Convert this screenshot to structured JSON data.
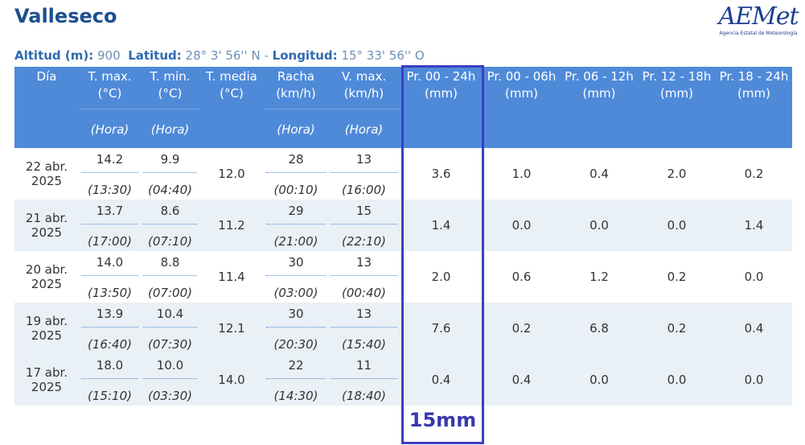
{
  "header": {
    "title": "Valleseco",
    "logo": {
      "name": "AEMet",
      "subtitle": "Agencia Estatal de Meteorología"
    }
  },
  "info": {
    "altitude_label": "Altitud (m):",
    "altitude": "900",
    "latitude_label": "Latitud:",
    "latitude": "28° 3' 56'' N",
    "separator": "-",
    "longitude_label": "Longitud:",
    "longitude": "15° 33' 56'' O"
  },
  "table": {
    "columns": [
      {
        "title": "Día"
      },
      {
        "title": "T. max.",
        "unit": "(°C)",
        "sub": "(Hora)"
      },
      {
        "title": "T. min.",
        "unit": "(°C)",
        "sub": "(Hora)"
      },
      {
        "title": "T. media",
        "unit": "(°C)"
      },
      {
        "title": "Racha",
        "unit": "(km/h)",
        "sub": "(Hora)"
      },
      {
        "title": "V. max.",
        "unit": "(km/h)",
        "sub": "(Hora)"
      },
      {
        "title": "Pr. 00 - 24h",
        "unit": "(mm)"
      },
      {
        "title": "Pr. 00 - 06h",
        "unit": "(mm)"
      },
      {
        "title": "Pr. 06 - 12h",
        "unit": "(mm)"
      },
      {
        "title": "Pr. 12 - 18h",
        "unit": "(mm)"
      },
      {
        "title": "Pr. 18 - 24h",
        "unit": "(mm)"
      }
    ],
    "rows": [
      [
        "22 abr. 2025",
        {
          "value": "14.2",
          "time": "(13:30)"
        },
        {
          "value": "9.9",
          "time": "(04:40)"
        },
        "12.0",
        {
          "value": "28",
          "time": "(00:10)"
        },
        {
          "value": "13",
          "time": "(16:00)"
        },
        "3.6",
        "1.0",
        "0.4",
        "2.0",
        "0.2"
      ],
      [
        "21 abr. 2025",
        {
          "value": "13.7",
          "time": "(17:00)"
        },
        {
          "value": "8.6",
          "time": "(07:10)"
        },
        "11.2",
        {
          "value": "29",
          "time": "(21:00)"
        },
        {
          "value": "15",
          "time": "(22:10)"
        },
        "1.4",
        "0.0",
        "0.0",
        "0.0",
        "1.4"
      ],
      [
        "20 abr. 2025",
        {
          "value": "14.0",
          "time": "(13:50)"
        },
        {
          "value": "8.8",
          "time": "(07:00)"
        },
        "11.4",
        {
          "value": "30",
          "time": "(03:00)"
        },
        {
          "value": "13",
          "time": "(00:40)"
        },
        "2.0",
        "0.6",
        "1.2",
        "0.2",
        "0.0"
      ],
      [
        "19 abr. 2025",
        {
          "value": "13.9",
          "time": "(16:40)"
        },
        {
          "value": "10.4",
          "time": "(07:30)"
        },
        "12.1",
        {
          "value": "30",
          "time": "(20:30)"
        },
        {
          "value": "13",
          "time": "(15:40)"
        },
        "7.6",
        "0.2",
        "6.8",
        "0.2",
        "0.4"
      ],
      [
        "17 abr. 2025",
        {
          "value": "18.0",
          "time": "(15:10)"
        },
        {
          "value": "10.0",
          "time": "(03:30)"
        },
        "14.0",
        {
          "value": "22",
          "time": "(14:30)"
        },
        {
          "value": "11",
          "time": "(18:40)"
        },
        "0.4",
        "0.4",
        "0.0",
        "0.0",
        "0.0"
      ]
    ]
  },
  "annotation": {
    "text": "15mm"
  }
}
